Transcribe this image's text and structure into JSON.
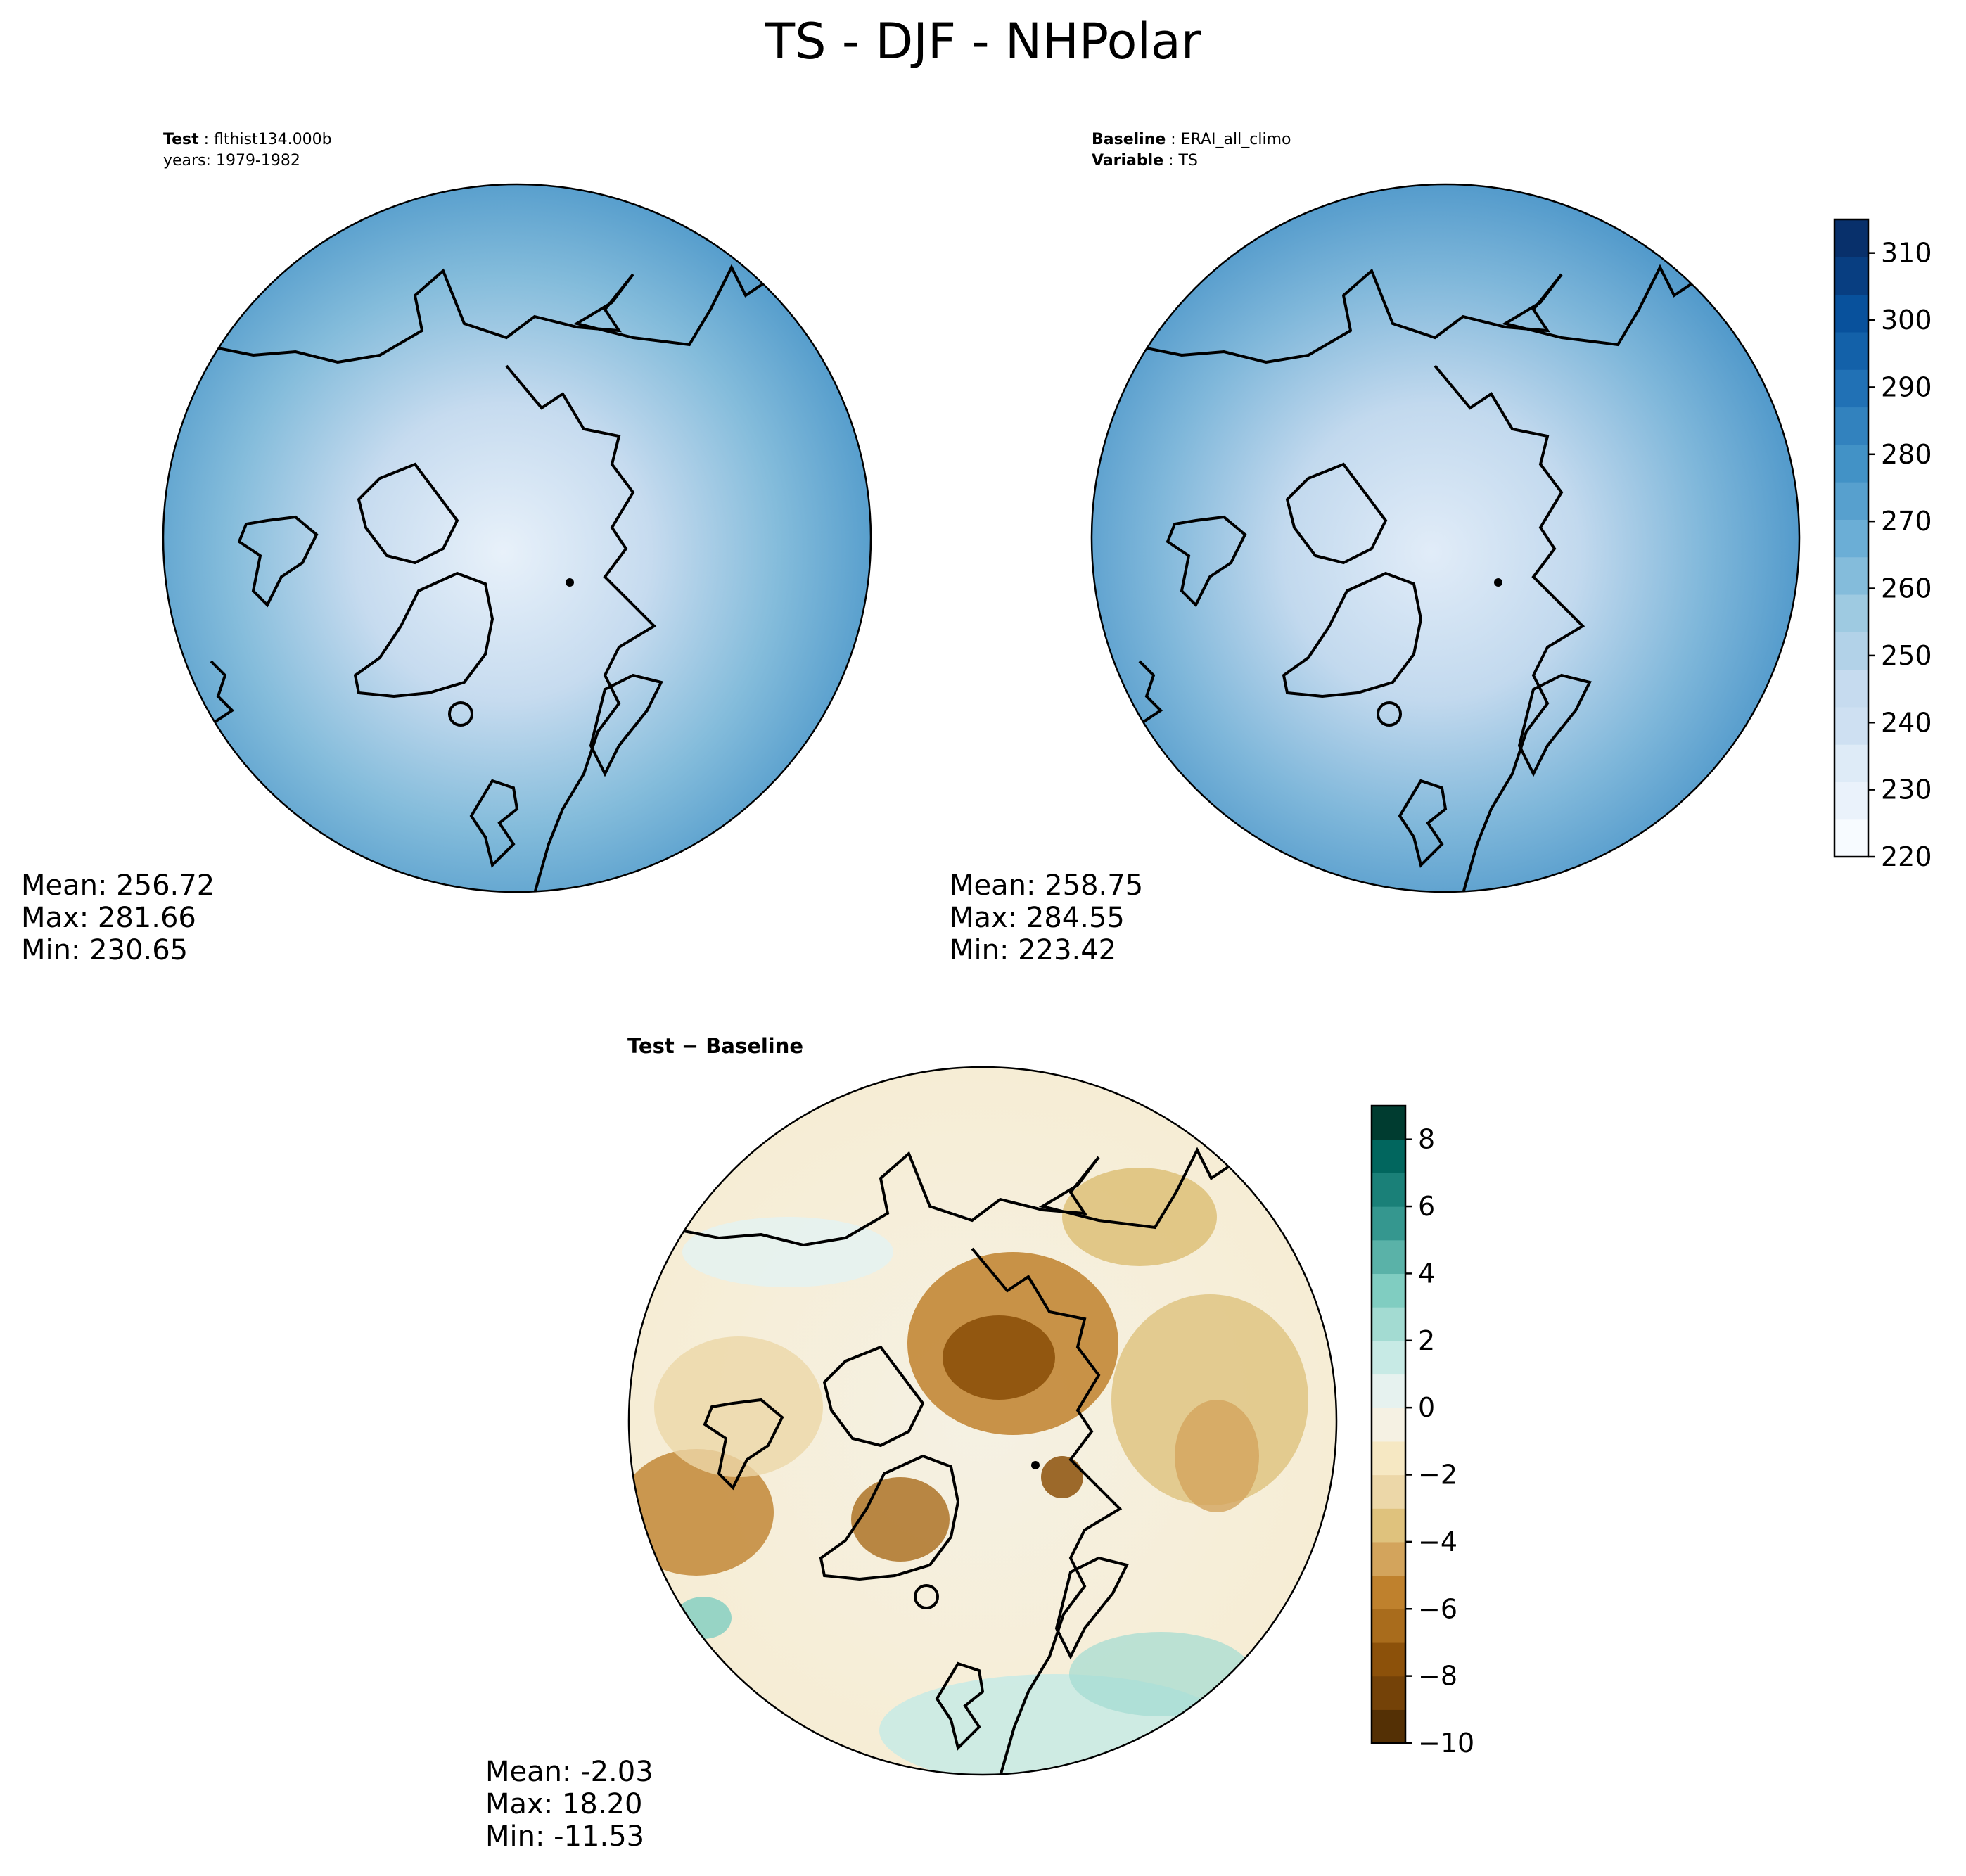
{
  "figure": {
    "title": "TS - DJF - NHPolar"
  },
  "panels": {
    "test": {
      "header_label": "Test",
      "header_value": "flthist134.000b",
      "header_line2": "years: 1979-1982",
      "stats": {
        "mean": "Mean: 256.72",
        "max": "Max: 281.66",
        "min": "Min: 230.65"
      }
    },
    "baseline": {
      "header_label": "Baseline",
      "header_value": "ERAI_all_climo",
      "header_label2": "Variable",
      "header_value2": "TS",
      "stats": {
        "mean": "Mean: 258.75",
        "max": "Max: 284.55",
        "min": "Min: 223.42"
      }
    },
    "difference": {
      "title_left": "Test",
      "title_sep": "−",
      "title_right": "Baseline",
      "stats": {
        "mean": "Mean: -2.03",
        "max": "Max: 18.20",
        "min": "Min: -11.53"
      }
    }
  },
  "colorbars": {
    "ts": {
      "ticks": [
        "220",
        "230",
        "240",
        "250",
        "260",
        "270",
        "280",
        "290",
        "300",
        "310"
      ],
      "range": [
        220,
        315
      ],
      "colors": [
        "#f7fbff",
        "#eaf2fb",
        "#deebf7",
        "#cee0f2",
        "#c6dbef",
        "#b2d2e8",
        "#9ecae1",
        "#84bcdb",
        "#6baed6",
        "#57a0ce",
        "#4292c6",
        "#3282be",
        "#2171b5",
        "#1361a9",
        "#08519c",
        "#083e81",
        "#08306b"
      ]
    },
    "diff": {
      "ticks": [
        "−10",
        "−8",
        "−6",
        "−4",
        "−2",
        "0",
        "2",
        "4",
        "6",
        "8"
      ],
      "range": [
        -10,
        9
      ],
      "colors": [
        "#543005",
        "#744208",
        "#8c510a",
        "#a96c1c",
        "#bf812d",
        "#d3a45c",
        "#dfc27d",
        "#ecd7a8",
        "#f6e8c3",
        "#f5f1e3",
        "#e6f2ef",
        "#c7eae5",
        "#a3dbd2",
        "#80cdc1",
        "#5ab2a8",
        "#35978f",
        "#1a8078",
        "#01665e",
        "#003c30"
      ]
    }
  }
}
